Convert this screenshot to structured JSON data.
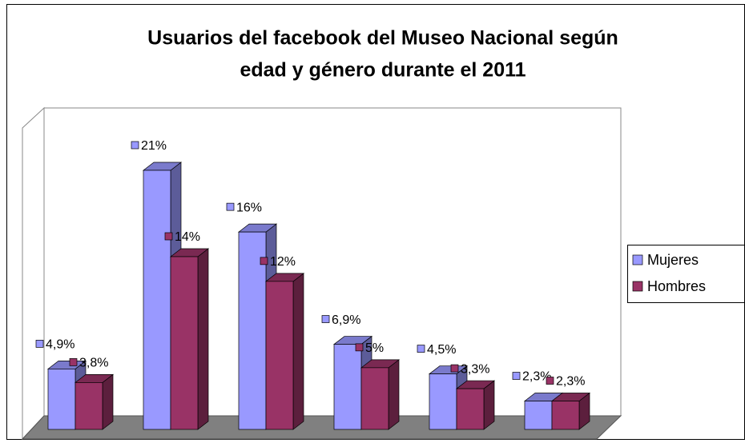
{
  "chart_data": {
    "type": "bar3d",
    "title": [
      "Usuarios del facebook del Museo Nacional según",
      "edad y género durante el 2011"
    ],
    "categories": [
      null,
      null,
      null,
      null,
      null,
      null
    ],
    "series": [
      {
        "name": "Mujeres",
        "color": "#9999ff",
        "values": [
          4.9,
          21,
          16,
          6.9,
          4.5,
          2.3
        ],
        "value_labels": [
          "4,9%",
          "21%",
          "16%",
          "6,9%",
          "4,5%",
          "2,3%"
        ]
      },
      {
        "name": "Hombres",
        "color": "#993366",
        "values": [
          3.8,
          14,
          12,
          5,
          3.3,
          2.3
        ],
        "value_labels": [
          "3,8%",
          "14%",
          "12%",
          "5%",
          "3,3%",
          "2,3%"
        ]
      }
    ],
    "legend": "right"
  }
}
